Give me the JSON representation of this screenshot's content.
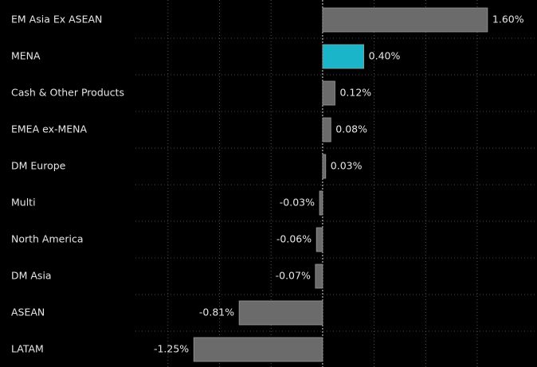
{
  "chart_data": {
    "type": "barh",
    "categories": [
      "EM Asia Ex ASEAN",
      "MENA",
      "Cash & Other Products",
      "EMEA ex-MENA",
      "DM Europe",
      "Multi",
      "North America",
      "DM Asia",
      "ASEAN",
      "LATAM"
    ],
    "values": [
      1.6,
      0.4,
      0.12,
      0.08,
      0.03,
      -0.03,
      -0.06,
      -0.07,
      -0.81,
      -1.25
    ],
    "value_labels": [
      "1.60%",
      "0.40%",
      "0.12%",
      "0.08%",
      "0.03%",
      "-0.03%",
      "-0.06%",
      "-0.07%",
      "-0.81%",
      "-1.25%"
    ],
    "colors": [
      "#6b6b6b",
      "#1ab5c9",
      "#6b6b6b",
      "#6b6b6b",
      "#6b6b6b",
      "#6b6b6b",
      "#6b6b6b",
      "#6b6b6b",
      "#6b6b6b",
      "#6b6b6b"
    ],
    "xlim": [
      -3.13,
      2.08
    ],
    "xticks": [
      -1.5,
      -1,
      -0.5,
      0,
      0.5,
      1,
      1.5
    ],
    "grid": true
  }
}
